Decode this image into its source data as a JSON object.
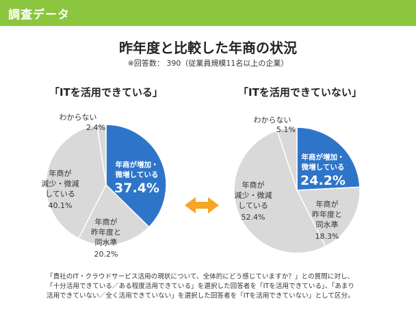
{
  "header": {
    "label": "調査データ"
  },
  "title": "昨年度と比較した年商の状況",
  "subtitle": "※回答数： 390（従業員規模11名以上の企業）",
  "colors": {
    "accent_blue": "#2e75c9",
    "gray": "#d9d9d9",
    "arrow": "#f6a623",
    "header": "#8cc63f"
  },
  "chart_data": [
    {
      "type": "pie",
      "title": "「ITを活用できている」",
      "slices": [
        {
          "name": [
            "年商が増加・",
            "微増している"
          ],
          "value": 37.4,
          "label": "37.4%",
          "highlight": true
        },
        {
          "name": [
            "年商が",
            "昨年度と",
            "同水準"
          ],
          "value": 20.2,
          "label": "20.2%"
        },
        {
          "name": [
            "年商が",
            "減少・微減",
            "している"
          ],
          "value": 40.1,
          "label": "40.1%"
        },
        {
          "name": [
            "わからない"
          ],
          "value": 2.4,
          "label": "2.4%"
        }
      ]
    },
    {
      "type": "pie",
      "title": "「ITを活用できていない」",
      "slices": [
        {
          "name": [
            "年商が増加・",
            "微増している"
          ],
          "value": 24.2,
          "label": "24.2%",
          "highlight": true
        },
        {
          "name": [
            "年商が",
            "昨年度と",
            "同水準"
          ],
          "value": 18.3,
          "label": "18.3%"
        },
        {
          "name": [
            "年商が",
            "減少・微減",
            "している"
          ],
          "value": 52.4,
          "label": "52.4%"
        },
        {
          "name": [
            "わからない"
          ],
          "value": 5.1,
          "label": "5.1%"
        }
      ]
    }
  ],
  "footnote": [
    "「貴社のIT・クラウドサービス活用の現状について、全体的にどう感じていますか？」との質問に対し、",
    "「十分活用できている／ある程度活用できている」を選択した回答者を「ITを活用できている」、「あまり",
    "活用できていない／全く活用できていない」を選択した回答者を「ITを活用できていない」として区分。"
  ]
}
